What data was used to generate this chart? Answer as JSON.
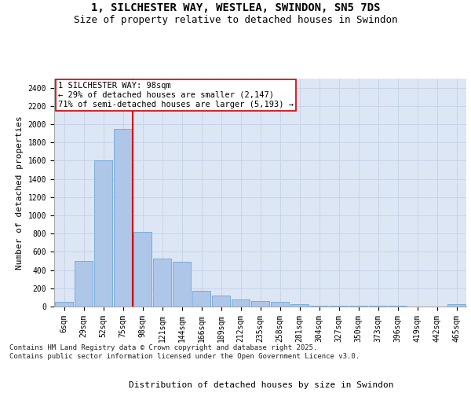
{
  "title_line1": "1, SILCHESTER WAY, WESTLEA, SWINDON, SN5 7DS",
  "title_line2": "Size of property relative to detached houses in Swindon",
  "xlabel": "Distribution of detached houses by size in Swindon",
  "ylabel": "Number of detached properties",
  "categories": [
    "6sqm",
    "29sqm",
    "52sqm",
    "75sqm",
    "98sqm",
    "121sqm",
    "144sqm",
    "166sqm",
    "189sqm",
    "212sqm",
    "235sqm",
    "258sqm",
    "281sqm",
    "304sqm",
    "327sqm",
    "350sqm",
    "373sqm",
    "396sqm",
    "419sqm",
    "442sqm",
    "465sqm"
  ],
  "values": [
    55,
    500,
    1600,
    1950,
    820,
    530,
    490,
    175,
    120,
    80,
    60,
    50,
    30,
    10,
    10,
    5,
    5,
    5,
    0,
    0,
    30
  ],
  "bar_color": "#aec6e8",
  "bar_edge_color": "#5a9fd4",
  "line_x_index": 3,
  "line_color": "#cc0000",
  "annotation_text": "1 SILCHESTER WAY: 98sqm\n← 29% of detached houses are smaller (2,147)\n71% of semi-detached houses are larger (5,193) →",
  "annotation_box_color": "#ffffff",
  "annotation_box_edge_color": "#cc0000",
  "ylim": [
    0,
    2500
  ],
  "yticks": [
    0,
    200,
    400,
    600,
    800,
    1000,
    1200,
    1400,
    1600,
    1800,
    2000,
    2200,
    2400
  ],
  "grid_color": "#c8d4e8",
  "background_color": "#dce6f5",
  "footer_text": "Contains HM Land Registry data © Crown copyright and database right 2025.\nContains public sector information licensed under the Open Government Licence v3.0.",
  "title_fontsize": 10,
  "subtitle_fontsize": 9,
  "axis_label_fontsize": 8,
  "tick_fontsize": 7,
  "annotation_fontsize": 7.5,
  "footer_fontsize": 6.5
}
